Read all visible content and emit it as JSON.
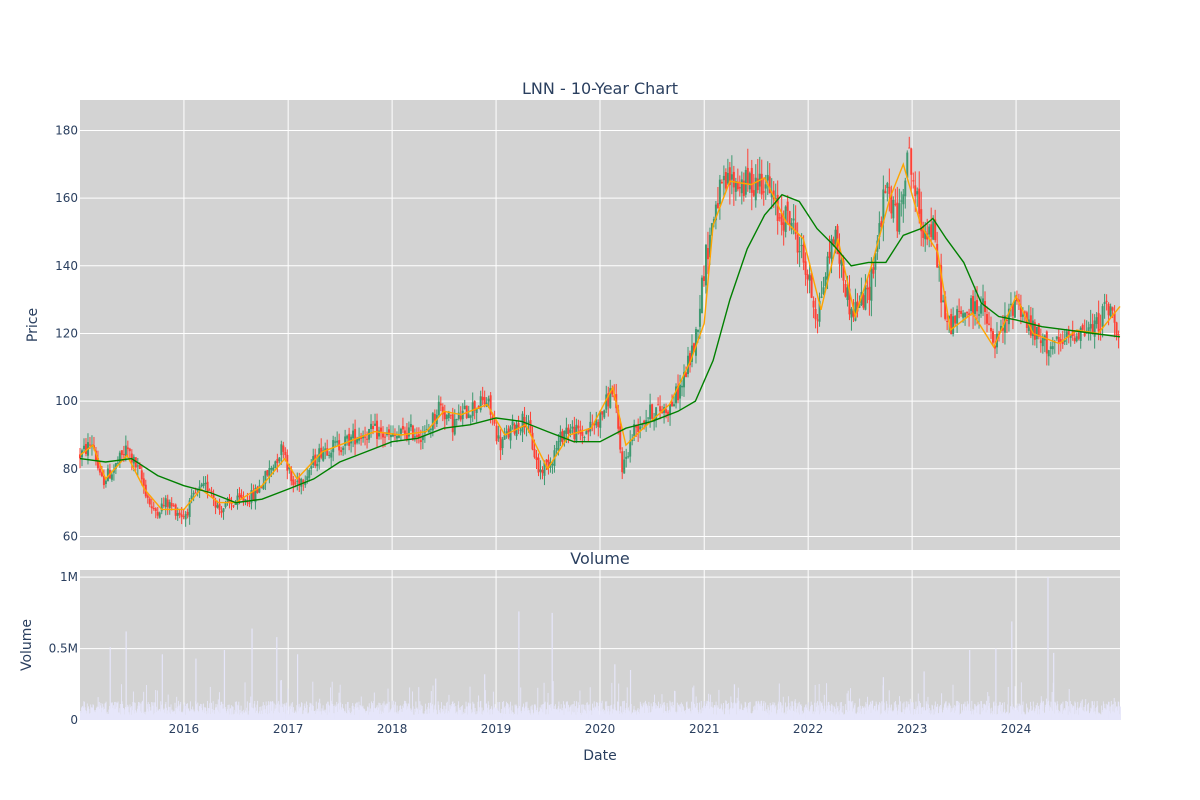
{
  "chart_data": [
    {
      "type": "candlestick",
      "title": "LNN - 10-Year Chart",
      "ylabel": "Price",
      "xlabel": "",
      "ylim": [
        56,
        189
      ],
      "y_ticks": [
        "60",
        "80",
        "100",
        "120",
        "140",
        "160",
        "180"
      ],
      "x_range": [
        "2015-01-01",
        "2024-12-31"
      ],
      "x_ticks": [
        "2016",
        "2017",
        "2018",
        "2019",
        "2020",
        "2021",
        "2022",
        "2023",
        "2024"
      ],
      "grid": true,
      "background": "#d3d3d3",
      "colors": {
        "up": "#3d9970",
        "down": "#ff4136",
        "ma_short": "#ffa500",
        "ma_long": "#008000"
      },
      "price_path": [
        [
          "2015-01-01",
          84
        ],
        [
          "2015-02-15",
          88
        ],
        [
          "2015-03-15",
          76
        ],
        [
          "2015-05-01",
          80
        ],
        [
          "2015-06-15",
          86
        ],
        [
          "2015-08-01",
          78
        ],
        [
          "2015-09-15",
          67
        ],
        [
          "2015-11-01",
          70
        ],
        [
          "2016-01-01",
          66
        ],
        [
          "2016-02-15",
          73
        ],
        [
          "2016-04-01",
          75
        ],
        [
          "2016-05-01",
          68
        ],
        [
          "2016-07-01",
          70
        ],
        [
          "2016-09-01",
          72
        ],
        [
          "2016-11-01",
          80
        ],
        [
          "2016-12-15",
          87
        ],
        [
          "2017-01-15",
          75
        ],
        [
          "2017-03-01",
          78
        ],
        [
          "2017-05-01",
          86
        ],
        [
          "2017-07-01",
          87
        ],
        [
          "2017-09-01",
          90
        ],
        [
          "2017-11-01",
          91
        ],
        [
          "2018-01-01",
          89
        ],
        [
          "2018-03-01",
          91
        ],
        [
          "2018-05-01",
          90
        ],
        [
          "2018-06-15",
          99
        ],
        [
          "2018-08-01",
          93
        ],
        [
          "2018-10-01",
          98
        ],
        [
          "2018-12-01",
          100
        ],
        [
          "2019-01-15",
          87
        ],
        [
          "2019-03-01",
          92
        ],
        [
          "2019-04-15",
          95
        ],
        [
          "2019-06-01",
          79
        ],
        [
          "2019-07-15",
          83
        ],
        [
          "2019-09-01",
          92
        ],
        [
          "2019-11-01",
          90
        ],
        [
          "2020-01-01",
          95
        ],
        [
          "2020-02-15",
          104
        ],
        [
          "2020-03-20",
          80
        ],
        [
          "2020-05-01",
          92
        ],
        [
          "2020-07-01",
          97
        ],
        [
          "2020-09-01",
          98
        ],
        [
          "2020-10-15",
          105
        ],
        [
          "2020-12-01",
          118
        ],
        [
          "2021-01-01",
          140
        ],
        [
          "2021-02-15",
          160
        ],
        [
          "2021-04-01",
          165
        ],
        [
          "2021-06-01",
          164
        ],
        [
          "2021-08-01",
          166
        ],
        [
          "2021-09-15",
          155
        ],
        [
          "2021-11-01",
          154
        ],
        [
          "2021-12-15",
          142
        ],
        [
          "2022-02-01",
          125
        ],
        [
          "2022-04-01",
          150
        ],
        [
          "2022-06-01",
          126
        ],
        [
          "2022-08-01",
          132
        ],
        [
          "2022-10-01",
          163
        ],
        [
          "2022-11-15",
          153
        ],
        [
          "2022-12-15",
          175
        ],
        [
          "2023-02-01",
          152
        ],
        [
          "2023-03-15",
          150
        ],
        [
          "2023-05-01",
          122
        ],
        [
          "2023-07-01",
          126
        ],
        [
          "2023-09-01",
          129
        ],
        [
          "2023-10-15",
          116
        ],
        [
          "2023-12-01",
          124
        ],
        [
          "2024-01-01",
          131
        ],
        [
          "2024-02-15",
          122
        ],
        [
          "2024-04-01",
          117
        ],
        [
          "2024-06-01",
          116
        ],
        [
          "2024-08-01",
          121
        ],
        [
          "2024-10-01",
          121
        ],
        [
          "2024-11-15",
          128
        ],
        [
          "2024-12-31",
          121
        ]
      ],
      "ma_short": [
        [
          "2015-01-01",
          84
        ],
        [
          "2015-02-15",
          87
        ],
        [
          "2015-04-01",
          77
        ],
        [
          "2015-06-15",
          84
        ],
        [
          "2015-08-15",
          74
        ],
        [
          "2015-10-15",
          68
        ],
        [
          "2016-01-01",
          68
        ],
        [
          "2016-03-01",
          74
        ],
        [
          "2016-05-01",
          70
        ],
        [
          "2016-07-01",
          70
        ],
        [
          "2016-10-01",
          75
        ],
        [
          "2016-12-20",
          83
        ],
        [
          "2017-02-01",
          77
        ],
        [
          "2017-05-01",
          85
        ],
        [
          "2017-08-01",
          88
        ],
        [
          "2017-11-01",
          91
        ],
        [
          "2018-02-01",
          90
        ],
        [
          "2018-05-01",
          91
        ],
        [
          "2018-07-01",
          97
        ],
        [
          "2018-09-01",
          96
        ],
        [
          "2018-12-01",
          99
        ],
        [
          "2019-02-01",
          90
        ],
        [
          "2019-04-15",
          93
        ],
        [
          "2019-07-01",
          80
        ],
        [
          "2019-09-15",
          90
        ],
        [
          "2019-12-01",
          92
        ],
        [
          "2020-02-15",
          104
        ],
        [
          "2020-04-01",
          87
        ],
        [
          "2020-06-01",
          92
        ],
        [
          "2020-09-01",
          99
        ],
        [
          "2020-11-15",
          112
        ],
        [
          "2021-01-01",
          123
        ],
        [
          "2021-02-01",
          152
        ],
        [
          "2021-04-01",
          165
        ],
        [
          "2021-06-15",
          164
        ],
        [
          "2021-08-01",
          166
        ],
        [
          "2021-10-15",
          153
        ],
        [
          "2021-12-15",
          148
        ],
        [
          "2022-02-15",
          127
        ],
        [
          "2022-04-15",
          148
        ],
        [
          "2022-06-15",
          125
        ],
        [
          "2022-08-15",
          141
        ],
        [
          "2022-10-15",
          160
        ],
        [
          "2022-12-01",
          170
        ],
        [
          "2023-02-01",
          152
        ],
        [
          "2023-04-01",
          144
        ],
        [
          "2023-05-15",
          121
        ],
        [
          "2023-08-01",
          126
        ],
        [
          "2023-10-15",
          116
        ],
        [
          "2024-01-01",
          131
        ],
        [
          "2024-03-01",
          120
        ],
        [
          "2024-06-01",
          117
        ],
        [
          "2024-08-01",
          121
        ],
        [
          "2024-10-15",
          120
        ],
        [
          "2024-12-31",
          128
        ]
      ],
      "ma_long": [
        [
          "2015-01-01",
          83
        ],
        [
          "2015-04-01",
          82
        ],
        [
          "2015-07-01",
          83
        ],
        [
          "2015-10-01",
          78
        ],
        [
          "2016-01-01",
          75
        ],
        [
          "2016-04-01",
          73
        ],
        [
          "2016-07-01",
          70
        ],
        [
          "2016-10-01",
          71
        ],
        [
          "2017-01-01",
          74
        ],
        [
          "2017-04-01",
          77
        ],
        [
          "2017-07-01",
          82
        ],
        [
          "2017-10-01",
          85
        ],
        [
          "2018-01-01",
          88
        ],
        [
          "2018-04-01",
          89
        ],
        [
          "2018-07-01",
          92
        ],
        [
          "2018-10-01",
          93
        ],
        [
          "2019-01-01",
          95
        ],
        [
          "2019-04-01",
          94
        ],
        [
          "2019-07-01",
          91
        ],
        [
          "2019-10-01",
          88
        ],
        [
          "2020-01-01",
          88
        ],
        [
          "2020-04-01",
          92
        ],
        [
          "2020-07-01",
          94
        ],
        [
          "2020-10-01",
          97
        ],
        [
          "2020-12-01",
          100
        ],
        [
          "2021-02-01",
          112
        ],
        [
          "2021-04-01",
          130
        ],
        [
          "2021-06-01",
          145
        ],
        [
          "2021-08-01",
          155
        ],
        [
          "2021-10-01",
          161
        ],
        [
          "2021-12-01",
          159
        ],
        [
          "2022-02-01",
          151
        ],
        [
          "2022-04-01",
          146
        ],
        [
          "2022-06-01",
          140
        ],
        [
          "2022-08-01",
          141
        ],
        [
          "2022-10-01",
          141
        ],
        [
          "2022-12-01",
          149
        ],
        [
          "2023-02-01",
          151
        ],
        [
          "2023-03-15",
          154
        ],
        [
          "2023-05-01",
          148
        ],
        [
          "2023-07-01",
          141
        ],
        [
          "2023-09-01",
          129
        ],
        [
          "2023-11-01",
          125
        ],
        [
          "2024-01-01",
          124
        ],
        [
          "2024-04-01",
          122
        ],
        [
          "2024-07-01",
          121
        ],
        [
          "2024-10-01",
          120
        ],
        [
          "2024-12-31",
          119
        ]
      ]
    },
    {
      "type": "bar",
      "title": "Volume",
      "xlabel": "Date",
      "ylabel": "Volume",
      "ylim": [
        0,
        1050000
      ],
      "y_ticks": [
        "0",
        "0.5M",
        "1M"
      ],
      "x_ticks": [
        "2016",
        "2017",
        "2018",
        "2019",
        "2020",
        "2021",
        "2022",
        "2023",
        "2024"
      ],
      "bar_color": "#e6e6fa",
      "baseline_volume": 90000,
      "spikes": [
        [
          "2015-04-15",
          510000
        ],
        [
          "2015-06-10",
          620000
        ],
        [
          "2015-10-15",
          460000
        ],
        [
          "2016-02-10",
          430000
        ],
        [
          "2016-05-20",
          490000
        ],
        [
          "2016-08-25",
          640000
        ],
        [
          "2016-11-20",
          580000
        ],
        [
          "2017-02-01",
          460000
        ],
        [
          "2018-06-01",
          290000
        ],
        [
          "2018-11-20",
          320000
        ],
        [
          "2019-03-20",
          760000
        ],
        [
          "2019-07-15",
          750000
        ],
        [
          "2020-02-20",
          390000
        ],
        [
          "2020-04-15",
          350000
        ],
        [
          "2021-04-15",
          250000
        ],
        [
          "2022-09-20",
          300000
        ],
        [
          "2023-02-10",
          340000
        ],
        [
          "2023-07-20",
          490000
        ],
        [
          "2023-10-20",
          500000
        ],
        [
          "2023-12-15",
          690000
        ],
        [
          "2024-04-20",
          1000000
        ],
        [
          "2024-05-10",
          470000
        ]
      ]
    }
  ]
}
